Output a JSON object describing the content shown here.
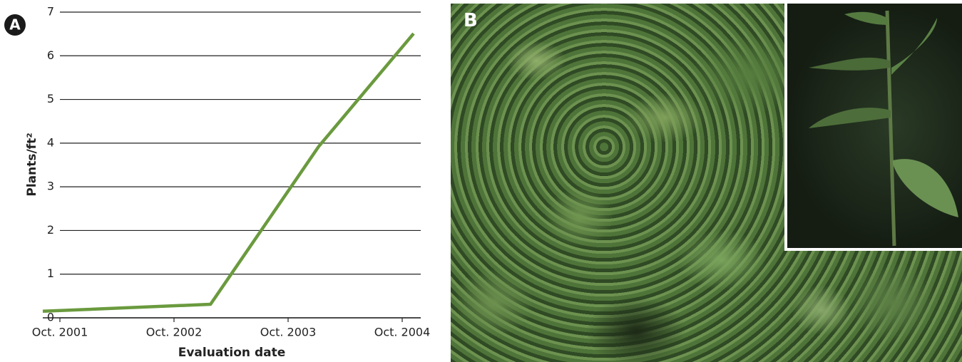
{
  "chart_data": {
    "type": "line",
    "panel_label": "A",
    "y_label": "Plants/ft²",
    "x_label": "Evaluation date",
    "x": [
      2001.6,
      2003.07,
      2004.02,
      2004.85
    ],
    "series": [
      {
        "color": "#6a9a3e",
        "values": [
          0.15,
          0.31,
          3.93,
          6.51
        ]
      }
    ],
    "xlim": [
      2001.6,
      2004.95
    ],
    "xticks": [
      {
        "value": 2001.75,
        "label": "Oct. 2001"
      },
      {
        "value": 2002.75,
        "label": "Oct. 2002"
      },
      {
        "value": 2003.75,
        "label": "Oct. 2003"
      },
      {
        "value": 2004.75,
        "label": "Oct. 2004"
      }
    ],
    "ylim": [
      0,
      7
    ],
    "yticks": [
      0,
      1,
      2,
      3,
      4,
      5,
      6,
      7
    ],
    "grid": true
  },
  "photo": {
    "panel_label": "B"
  }
}
